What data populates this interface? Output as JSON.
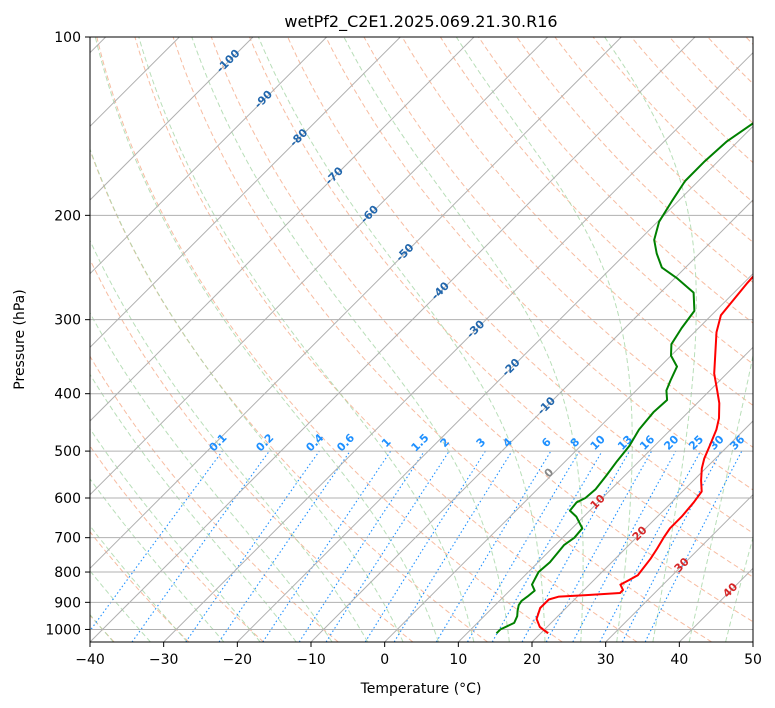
{
  "chart_data": {
    "type": "line",
    "title": "wetPf2_C2E1.2025.069.21.30.R16",
    "xlabel": "Temperature (°C)",
    "ylabel": "Pressure (hPa)",
    "xlim": [
      -40,
      50
    ],
    "ylim": [
      1050,
      100
    ],
    "x_ticks": [
      -40,
      -30,
      -20,
      -10,
      0,
      10,
      20,
      30,
      40,
      50
    ],
    "y_ticks": [
      100,
      200,
      300,
      400,
      500,
      600,
      700,
      800,
      900,
      1000
    ],
    "colors": {
      "temperature": "#ff0000",
      "dewpoint": "#008000",
      "isotherm": "#b0b0b0",
      "dry_adiabat": "#f4a582",
      "moist_adiabat": "#a6d6a6",
      "mixing_ratio": "#1e90ff",
      "isotherm_label": "#2166ac",
      "dry_label": "#d62728",
      "moist_label": "#888888"
    },
    "series": [
      {
        "name": "Temperature",
        "points": [
          [
            21,
            1015
          ],
          [
            19,
            990
          ],
          [
            17.5,
            960
          ],
          [
            16.5,
            920
          ],
          [
            16.5,
            890
          ],
          [
            17.5,
            880
          ],
          [
            21,
            875
          ],
          [
            25.3,
            868
          ],
          [
            25.3,
            858
          ],
          [
            24.2,
            840
          ],
          [
            24.8,
            825
          ],
          [
            25.3,
            810
          ],
          [
            25.1,
            790
          ],
          [
            24.8,
            760
          ],
          [
            24.3,
            730
          ],
          [
            23.7,
            700
          ],
          [
            23.3,
            675
          ],
          [
            23.3,
            645
          ],
          [
            23,
            610
          ],
          [
            22.6,
            585
          ],
          [
            21,
            560
          ],
          [
            19.5,
            535
          ],
          [
            18.5,
            515
          ],
          [
            17.5,
            490
          ],
          [
            16.2,
            460
          ],
          [
            15,
            440
          ],
          [
            13,
            415
          ],
          [
            11,
            395
          ],
          [
            8.3,
            370
          ],
          [
            6,
            345
          ],
          [
            3,
            315
          ],
          [
            1.3,
            295
          ],
          [
            0.5,
            260
          ],
          [
            0,
            230
          ],
          [
            -0.8,
            200
          ],
          [
            -1.8,
            170
          ],
          [
            -2.3,
            150
          ],
          [
            -2.6,
            136
          ],
          [
            -2.1,
            128
          ],
          [
            -0.8,
            122
          ],
          [
            1.3,
            112
          ],
          [
            2.3,
            106
          ],
          [
            3.3,
            100
          ]
        ]
      },
      {
        "name": "Dewpoint",
        "points": [
          [
            14,
            1015
          ],
          [
            14,
            1000
          ],
          [
            15,
            975
          ],
          [
            14.5,
            950
          ],
          [
            13.8,
            930
          ],
          [
            13.2,
            910
          ],
          [
            13,
            895
          ],
          [
            13.2,
            880
          ],
          [
            13.4,
            860
          ],
          [
            12.2,
            840
          ],
          [
            11.8,
            820
          ],
          [
            11.4,
            800
          ],
          [
            11.6,
            770
          ],
          [
            11.4,
            745
          ],
          [
            11.2,
            720
          ],
          [
            11.6,
            700
          ],
          [
            11.4,
            675
          ],
          [
            9,
            645
          ],
          [
            7.3,
            630
          ],
          [
            7.1,
            610
          ],
          [
            7.7,
            600
          ],
          [
            7.9,
            580
          ],
          [
            7.5,
            550
          ],
          [
            7,
            520
          ],
          [
            6.6,
            490
          ],
          [
            5.7,
            460
          ],
          [
            5.3,
            430
          ],
          [
            5.5,
            410
          ],
          [
            4.1,
            395
          ],
          [
            3.3,
            380
          ],
          [
            2.3,
            360
          ],
          [
            0,
            345
          ],
          [
            -1.5,
            330
          ],
          [
            -2.3,
            310
          ],
          [
            -2.9,
            290
          ],
          [
            -5.5,
            270
          ],
          [
            -9.8,
            255
          ],
          [
            -13.2,
            245
          ],
          [
            -15.8,
            232
          ],
          [
            -18,
            220
          ],
          [
            -19.8,
            205
          ],
          [
            -20.8,
            190
          ],
          [
            -21.8,
            175
          ],
          [
            -21.8,
            162
          ],
          [
            -21.5,
            150
          ],
          [
            -20.2,
            138
          ],
          [
            -17.9,
            127
          ],
          [
            -15.4,
            117
          ],
          [
            -13.6,
            108
          ],
          [
            -12.2,
            100
          ]
        ]
      }
    ],
    "isotherm_labels": [
      "-100",
      "-90",
      "-80",
      "-70",
      "-60",
      "-50",
      "-40",
      "-30",
      "-20",
      "-10"
    ],
    "isotherm_label_values": [
      -100,
      -90,
      -80,
      -70,
      -60,
      -50,
      -40,
      -30,
      -20,
      -10
    ],
    "mixing_ratio_labels": [
      "0.1",
      "0.2",
      "0.4",
      "0.6",
      "1",
      "1.5",
      "2",
      "3",
      "4",
      "6",
      "8",
      "10",
      "13",
      "16",
      "20",
      "25",
      "30",
      "36"
    ],
    "mixing_ratio_values": [
      0.1,
      0.2,
      0.4,
      0.6,
      1,
      1.5,
      2,
      3,
      4,
      6,
      8,
      10,
      13,
      16,
      20,
      25,
      30,
      36
    ],
    "dry_adiabat_labels": [
      "10",
      "20",
      "30",
      "40"
    ],
    "dry_adiabat_label_values": [
      10,
      20,
      30,
      40
    ],
    "moist_adiabat_labels": [
      "0"
    ],
    "moist_adiabat_label_values": [
      0
    ]
  }
}
